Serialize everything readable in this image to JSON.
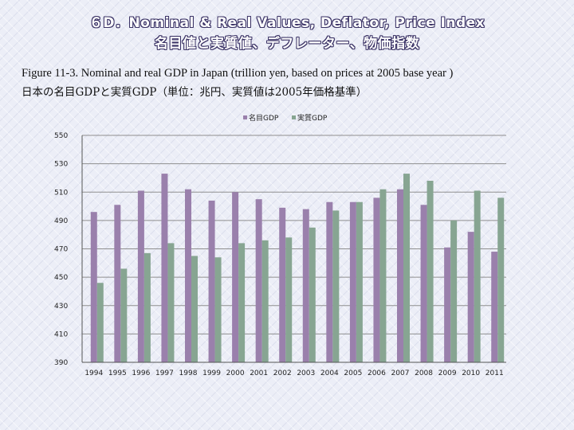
{
  "slide": {
    "title_line1": "６D．Nominal & Real Values, Deflator, Price Index",
    "title_line2": "名目値と実質値、デフレーター、物価指数",
    "caption_en": "Figure 11-3.   Nominal and real GDP in Japan (trillion yen, based on prices at 2005 base year )",
    "caption_ja": "日本の名目GDPと実質GDP（単位：兆円、実質値は2005年価格基準）"
  },
  "colors": {
    "nominal": "#9a80ac",
    "real": "#87a592",
    "gridline": "#8f8f8f",
    "axis": "#555555"
  },
  "chart_data": {
    "type": "bar",
    "title": "",
    "xlabel": "",
    "ylabel": "",
    "ylim": [
      390,
      550
    ],
    "yticks": [
      390,
      410,
      430,
      450,
      470,
      490,
      510,
      530,
      550
    ],
    "grid": true,
    "legend_position": "top-center",
    "categories": [
      "1994",
      "1995",
      "1996",
      "1997",
      "1998",
      "1999",
      "2000",
      "2001",
      "2002",
      "2003",
      "2004",
      "2005",
      "2006",
      "2007",
      "2008",
      "2009",
      "2010",
      "2011"
    ],
    "series": [
      {
        "name": "名目GDP",
        "values": [
          496,
          501,
          511,
          523,
          512,
          504,
          510,
          505,
          499,
          498,
          503,
          503,
          506,
          512,
          501,
          471,
          482,
          468
        ]
      },
      {
        "name": "実質GDP",
        "values": [
          446,
          456,
          467,
          474,
          465,
          464,
          474,
          476,
          478,
          485,
          497,
          503,
          512,
          523,
          518,
          490,
          511,
          506
        ]
      }
    ]
  }
}
